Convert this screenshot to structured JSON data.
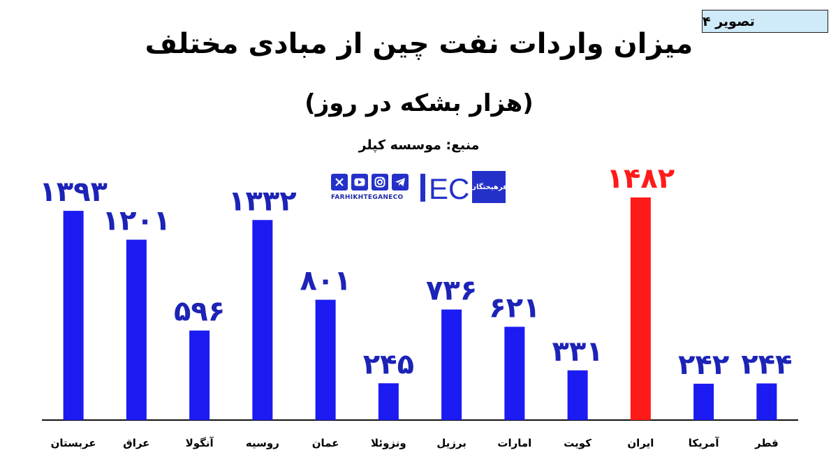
{
  "figure_label": "تصویر ۴",
  "title": "میزان واردات نفت چین از مبادی مختلف",
  "subtitle": "(هزار بشکه در روز)",
  "source": "منبع: موسسه کپلر",
  "brand": {
    "ec_text": "EC",
    "url": "FARHIKHTEGANECO",
    "badge_text": "فرهیختگان",
    "icons": [
      "x-icon",
      "youtube-icon",
      "instagram-icon",
      "telegram-icon"
    ]
  },
  "colors": {
    "normal_bar": "#1b1bf2",
    "highlight_bar": "#ff1a1a",
    "normal_label": "#1c23b6",
    "highlight_label": "#ff1a1a"
  },
  "chart_data": {
    "type": "bar",
    "categories": [
      "عربستان",
      "عراق",
      "آنگولا",
      "روسیه",
      "عمان",
      "ونزوئلا",
      "برزیل",
      "امارات",
      "کویت",
      "ایران",
      "آمریکا",
      "قطر"
    ],
    "values": [
      1393,
      1201,
      596,
      1332,
      801,
      245,
      736,
      621,
      331,
      1482,
      242,
      244
    ],
    "value_labels": [
      "۱۳۹۳",
      "۱۲۰۱",
      "۵۹۶",
      "۱۳۳۲",
      "۸۰۱",
      "۲۴۵",
      "۷۳۶",
      "۶۲۱",
      "۳۳۱",
      "۱۴۸۲",
      "۲۴۲",
      "۲۴۴"
    ],
    "highlight_index": 9,
    "ylim": [
      0,
      1482
    ],
    "xlabel": "",
    "ylabel": "",
    "grid": false
  }
}
